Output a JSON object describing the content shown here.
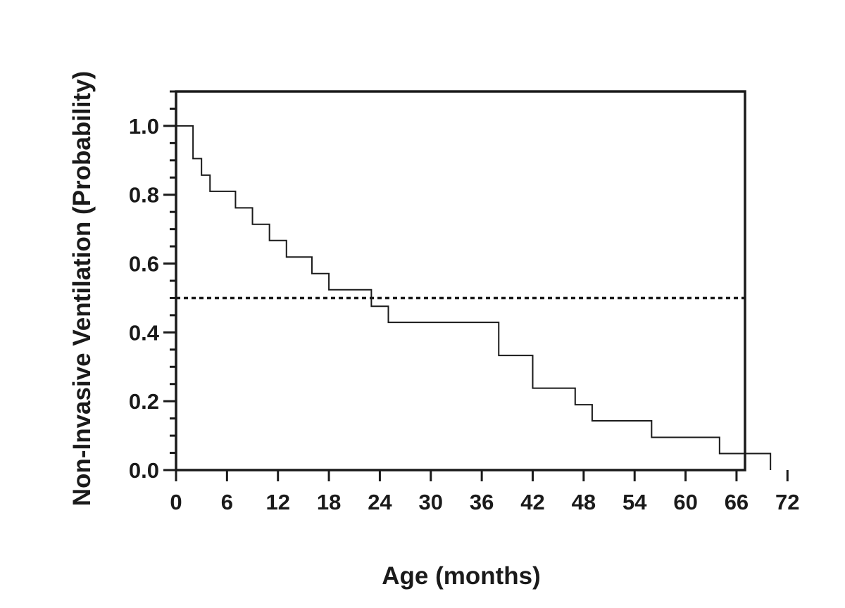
{
  "chart_data": {
    "type": "line",
    "title": "",
    "xlabel": "Age (months)",
    "ylabel": "Non-Invasive Ventilation (Probability)",
    "xlim": [
      0,
      67
    ],
    "ylim": [
      0,
      1.1
    ],
    "x_ticks": [
      0,
      6,
      12,
      18,
      24,
      30,
      36,
      42,
      48,
      54,
      60,
      66,
      72
    ],
    "x_tick_labels": [
      "0",
      "6",
      "12",
      "18",
      "24",
      "30",
      "36",
      "42",
      "48",
      "54",
      "60",
      "66",
      "72"
    ],
    "y_ticks": [
      0.0,
      0.2,
      0.4,
      0.6,
      0.8,
      1.0
    ],
    "y_tick_labels": [
      "0.0",
      "0.2",
      "0.4",
      "0.6",
      "0.8",
      "1.0"
    ],
    "y_minor_step": 0.05,
    "grid": false,
    "line_color": "#1a1a1a",
    "series": [
      {
        "style": "step",
        "x": [
          0,
          2,
          3,
          4,
          7,
          9,
          11,
          13,
          16,
          18,
          23,
          25,
          38,
          42,
          47,
          49,
          56,
          64,
          70,
          70
        ],
        "y": [
          1.0,
          0.905,
          0.857,
          0.81,
          0.762,
          0.714,
          0.667,
          0.619,
          0.571,
          0.524,
          0.476,
          0.429,
          0.333,
          0.238,
          0.19,
          0.143,
          0.095,
          0.048,
          0.048,
          0.0
        ]
      },
      {
        "style": "dotted",
        "x": [
          0,
          67
        ],
        "y": [
          0.5,
          0.5
        ]
      }
    ]
  }
}
